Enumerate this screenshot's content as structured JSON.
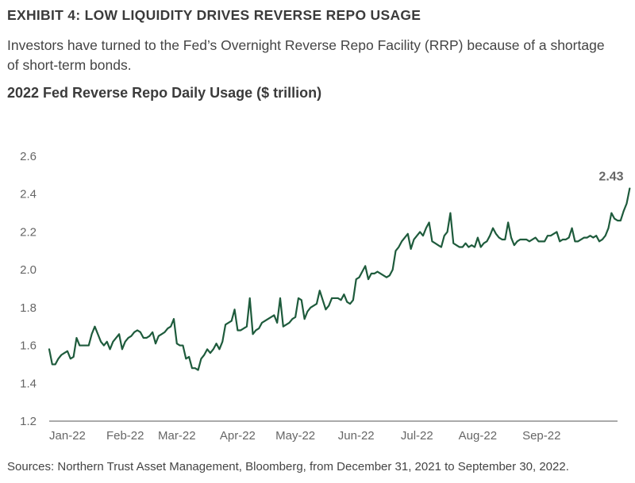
{
  "header": {
    "exhibit_title": "EXHIBIT 4: LOW LIQUIDITY DRIVES REVERSE REPO USAGE",
    "subtitle": "Investors have turned to the Fed’s Overnight Reverse Repo Facility (RRP) because of a shortage of short-term bonds."
  },
  "footer": {
    "source": "Sources: Northern Trust Asset Management, Bloomberg,  from December 31, 2021 to September 30, 2022."
  },
  "colors": {
    "line": "#1e5b3c",
    "axis": "#555555"
  },
  "chart_data": {
    "type": "line",
    "title": "2022 Fed Reverse Repo Daily Usage ($ trillion)",
    "xlabel": "",
    "ylabel": "",
    "ylim": [
      1.2,
      2.6
    ],
    "yticks": [
      "1.2",
      "1.4",
      "1.6",
      "1.8",
      "2.0",
      "2.2",
      "2.4",
      "2.6"
    ],
    "yticks_values": [
      1.2,
      1.4,
      1.6,
      1.8,
      2.0,
      2.2,
      2.4,
      2.6
    ],
    "xlim": [
      0,
      187
    ],
    "xticks": [
      "Jan-22",
      "Feb-22",
      "Mar-22",
      "Apr-22",
      "May-22",
      "Jun-22",
      "Jul-22",
      "Aug-22",
      "Sep-22"
    ],
    "xticks_positions": [
      6,
      25,
      42,
      62,
      81,
      101,
      121,
      141,
      162
    ],
    "grid": false,
    "end_label": "2.43",
    "series": [
      {
        "values": [
          1.58,
          1.5,
          1.5,
          1.53,
          1.55,
          1.56,
          1.57,
          1.53,
          1.54,
          1.64,
          1.6,
          1.6,
          1.6,
          1.6,
          1.66,
          1.7,
          1.66,
          1.62,
          1.6,
          1.62,
          1.58,
          1.62,
          1.64,
          1.66,
          1.58,
          1.62,
          1.64,
          1.65,
          1.67,
          1.68,
          1.67,
          1.64,
          1.64,
          1.65,
          1.67,
          1.61,
          1.65,
          1.66,
          1.67,
          1.69,
          1.7,
          1.74,
          1.61,
          1.6,
          1.6,
          1.53,
          1.54,
          1.48,
          1.48,
          1.47,
          1.53,
          1.55,
          1.58,
          1.56,
          1.58,
          1.61,
          1.58,
          1.62,
          1.71,
          1.72,
          1.73,
          1.79,
          1.68,
          1.68,
          1.69,
          1.7,
          1.85,
          1.66,
          1.68,
          1.69,
          1.72,
          1.73,
          1.74,
          1.75,
          1.76,
          1.72,
          1.85,
          1.7,
          1.71,
          1.72,
          1.74,
          1.75,
          1.85,
          1.84,
          1.74,
          1.78,
          1.8,
          1.81,
          1.82,
          1.89,
          1.84,
          1.79,
          1.81,
          1.85,
          1.85,
          1.85,
          1.84,
          1.87,
          1.83,
          1.82,
          1.84,
          1.95,
          1.96,
          1.99,
          2.02,
          1.95,
          1.98,
          1.98,
          1.99,
          1.98,
          1.97,
          1.96,
          1.97,
          2.0,
          2.1,
          2.12,
          2.15,
          2.17,
          2.19,
          2.11,
          2.16,
          2.18,
          2.2,
          2.18,
          2.22,
          2.25,
          2.15,
          2.14,
          2.13,
          2.12,
          2.18,
          2.2,
          2.3,
          2.14,
          2.13,
          2.12,
          2.12,
          2.14,
          2.12,
          2.13,
          2.12,
          2.17,
          2.12,
          2.14,
          2.15,
          2.18,
          2.22,
          2.19,
          2.17,
          2.16,
          2.16,
          2.25,
          2.17,
          2.13,
          2.15,
          2.16,
          2.16,
          2.16,
          2.15,
          2.16,
          2.17,
          2.15,
          2.15,
          2.15,
          2.18,
          2.18,
          2.19,
          2.2,
          2.15,
          2.16,
          2.16,
          2.17,
          2.22,
          2.15,
          2.15,
          2.16,
          2.17,
          2.17,
          2.18,
          2.17,
          2.18,
          2.15,
          2.16,
          2.18,
          2.22,
          2.3,
          2.27,
          2.26,
          2.26,
          2.31,
          2.35,
          2.43
        ]
      }
    ]
  }
}
